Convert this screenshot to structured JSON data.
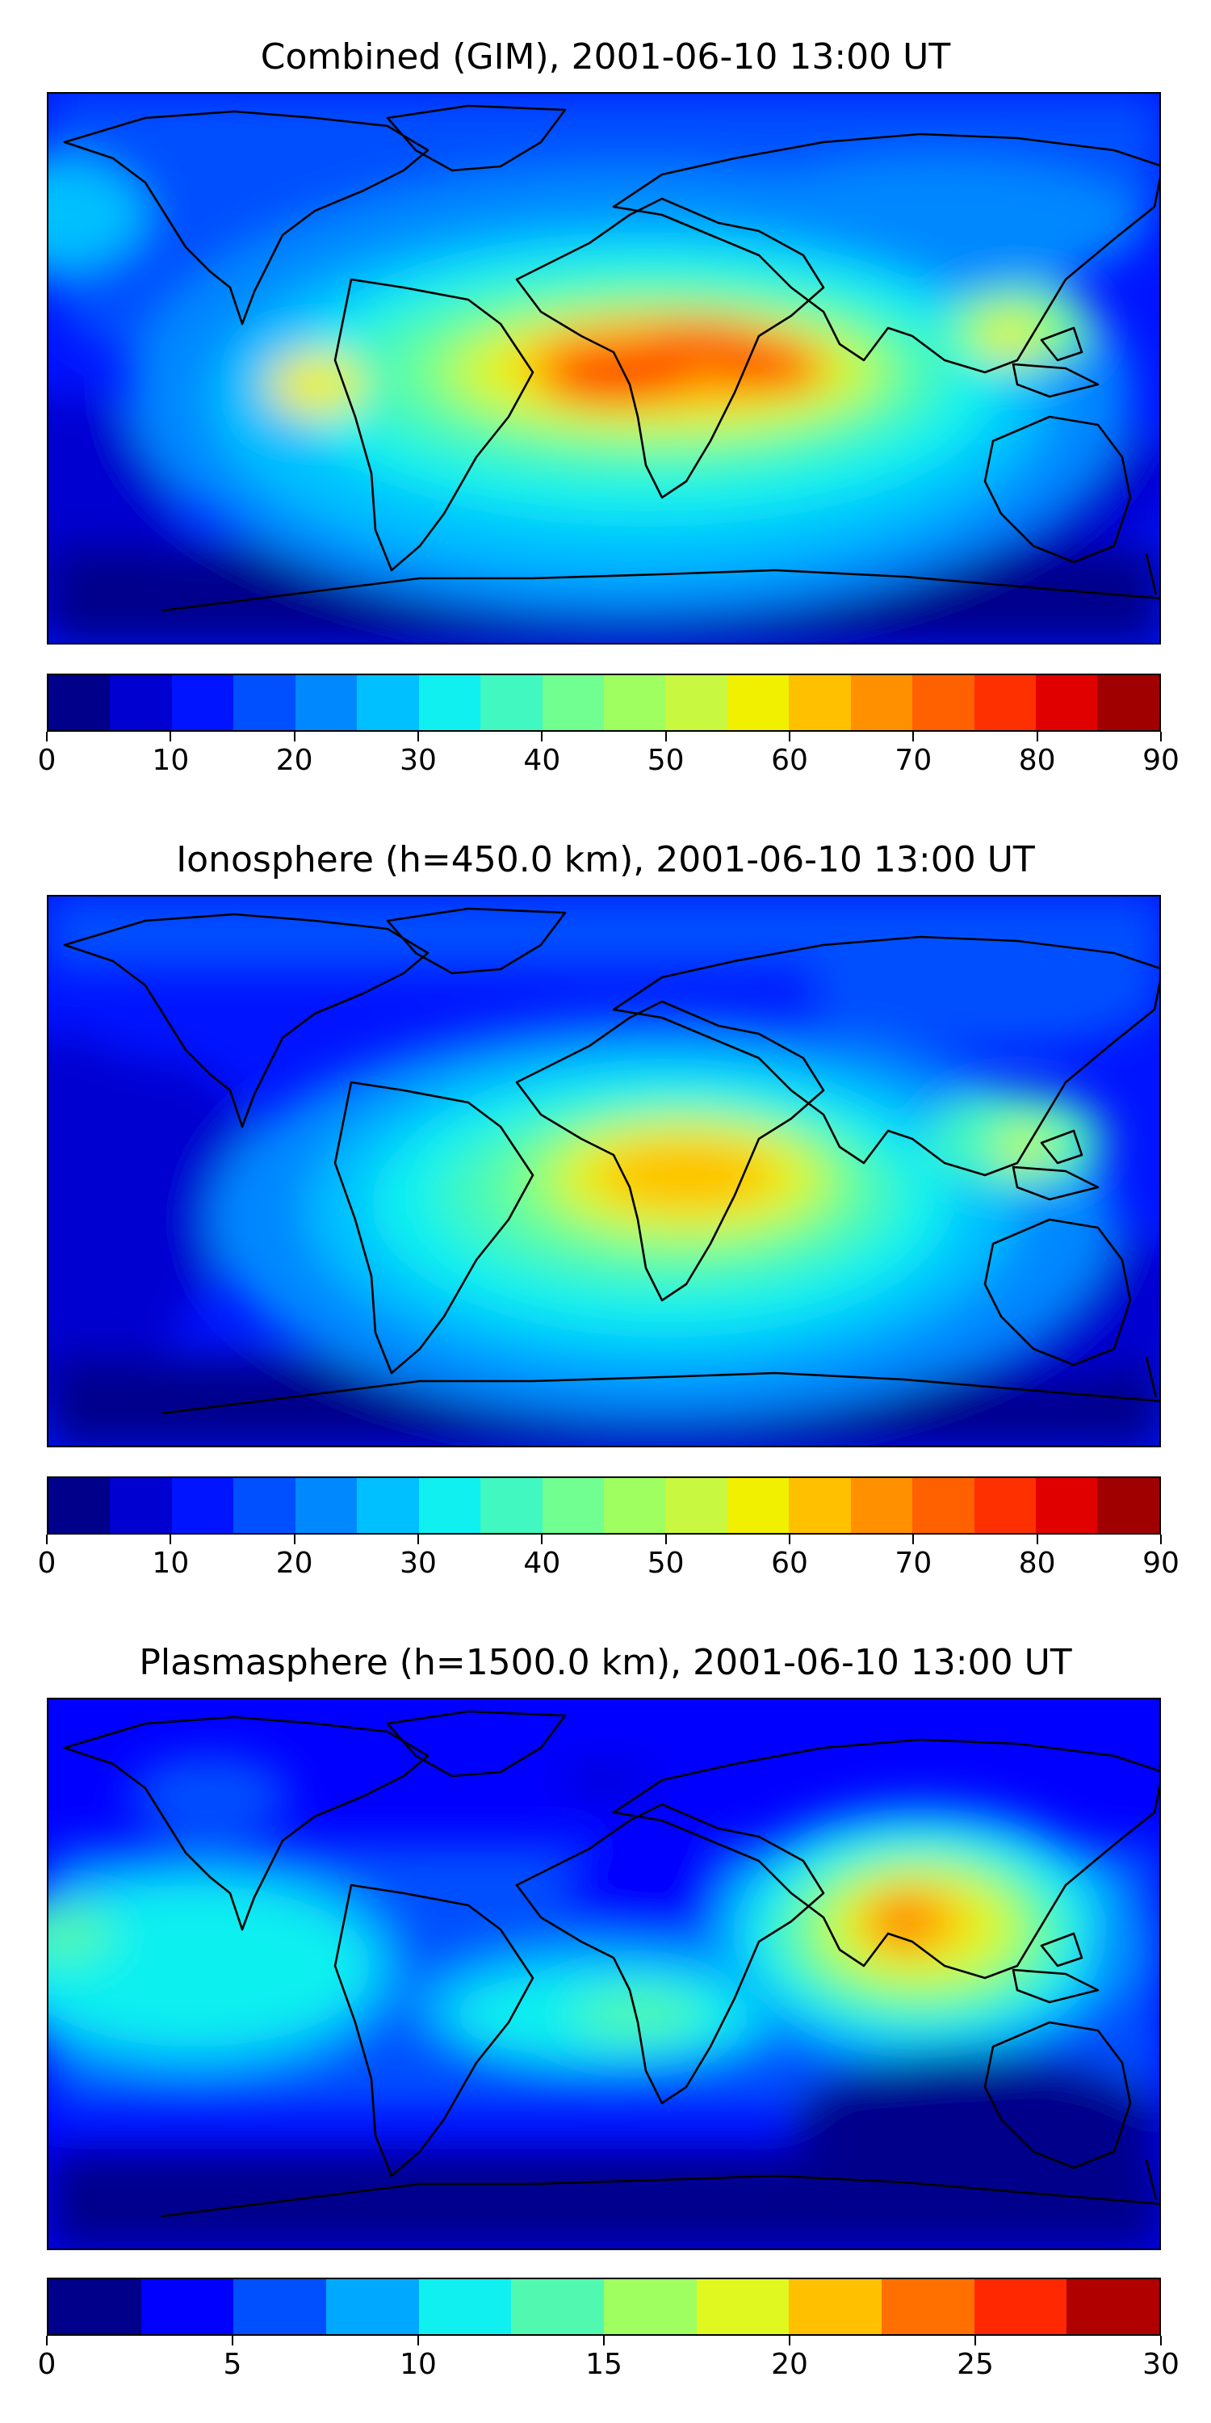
{
  "panels": [
    {
      "title": "Combined (GIM), 2001-06-10 13:00 UT",
      "colorbar": {
        "ticks": [
          "0",
          "10",
          "20",
          "30",
          "40",
          "50",
          "60",
          "70",
          "80",
          "90"
        ],
        "colors": [
          "#00008b",
          "#0000d0",
          "#0014ff",
          "#0050ff",
          "#0088ff",
          "#00c0ff",
          "#10f0f0",
          "#40f8c0",
          "#70ff90",
          "#a0ff60",
          "#c8f840",
          "#f0f000",
          "#ffc000",
          "#ff9000",
          "#ff6000",
          "#ff3000",
          "#e00000",
          "#a00000"
        ]
      }
    },
    {
      "title": "Ionosphere  (h=450.0 km), 2001-06-10 13:00 UT",
      "colorbar": {
        "ticks": [
          "0",
          "10",
          "20",
          "30",
          "40",
          "50",
          "60",
          "70",
          "80",
          "90"
        ],
        "colors": [
          "#00008b",
          "#0000d0",
          "#0014ff",
          "#0050ff",
          "#0088ff",
          "#00c0ff",
          "#10f0f0",
          "#40f8c0",
          "#70ff90",
          "#a0ff60",
          "#c8f840",
          "#f0f000",
          "#ffc000",
          "#ff9000",
          "#ff6000",
          "#ff3000",
          "#e00000",
          "#a00000"
        ]
      }
    },
    {
      "title": "Plasmasphere (h=1500.0 km), 2001-06-10 13:00 UT",
      "colorbar": {
        "ticks": [
          "0",
          "5",
          "10",
          "15",
          "20",
          "25",
          "30"
        ],
        "colors": [
          "#00008b",
          "#0000ff",
          "#0050ff",
          "#00a8ff",
          "#10f0f0",
          "#50f8b0",
          "#a0ff60",
          "#e0f820",
          "#ffc000",
          "#ff7000",
          "#ff2800",
          "#b00000"
        ]
      }
    }
  ]
}
